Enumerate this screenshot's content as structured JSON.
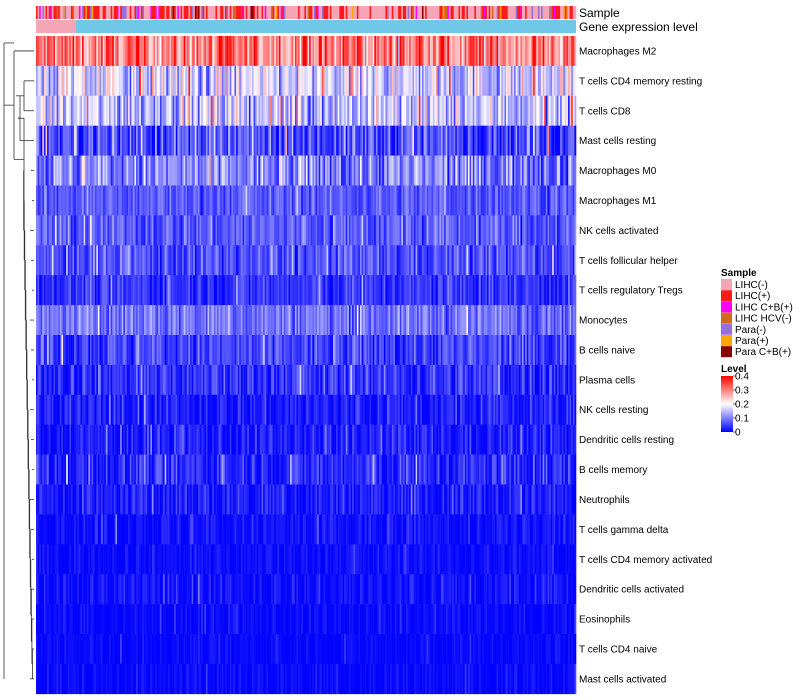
{
  "chart_data": {
    "type": "heatmap",
    "title": "",
    "annotation_tracks": [
      "Sample",
      "Gene expression level"
    ],
    "rows": [
      {
        "label": "Macrophages M2",
        "mean": 0.3,
        "spread": 0.09
      },
      {
        "label": "T cells CD4 memory resting",
        "mean": 0.16,
        "spread": 0.09
      },
      {
        "label": "T cells CD8",
        "mean": 0.15,
        "spread": 0.09
      },
      {
        "label": "Mast cells resting",
        "mean": 0.06,
        "spread": 0.07
      },
      {
        "label": "Macrophages M0",
        "mean": 0.1,
        "spread": 0.08
      },
      {
        "label": "Macrophages M1",
        "mean": 0.07,
        "spread": 0.04
      },
      {
        "label": "NK cells activated",
        "mean": 0.07,
        "spread": 0.05
      },
      {
        "label": "T cells follicular helper",
        "mean": 0.06,
        "spread": 0.05
      },
      {
        "label": "T cells regulatory  Tregs",
        "mean": 0.04,
        "spread": 0.04
      },
      {
        "label": "Monocytes",
        "mean": 0.09,
        "spread": 0.05
      },
      {
        "label": "B cells naive",
        "mean": 0.05,
        "spread": 0.05
      },
      {
        "label": "Plasma cells",
        "mean": 0.04,
        "spread": 0.05
      },
      {
        "label": "NK cells resting",
        "mean": 0.02,
        "spread": 0.04
      },
      {
        "label": "Dendritic cells resting",
        "mean": 0.02,
        "spread": 0.04
      },
      {
        "label": "B cells memory",
        "mean": 0.03,
        "spread": 0.05
      },
      {
        "label": "Neutrophils",
        "mean": 0.02,
        "spread": 0.04
      },
      {
        "label": "T cells gamma delta",
        "mean": 0.01,
        "spread": 0.03
      },
      {
        "label": "T cells CD4 memory activated",
        "mean": 0.01,
        "spread": 0.02
      },
      {
        "label": "Dendritic cells activated",
        "mean": 0.01,
        "spread": 0.03
      },
      {
        "label": "Eosinophils",
        "mean": 0.005,
        "spread": 0.02
      },
      {
        "label": "T cells CD4 naive",
        "mean": 0.005,
        "spread": 0.015
      },
      {
        "label": "Mast cells activated",
        "mean": 0.005,
        "spread": 0.02
      }
    ],
    "n_columns": 340,
    "color_scale": {
      "title": "Level",
      "ticks": [
        "0.4",
        "0.3",
        "0.2",
        "0.1",
        "0"
      ],
      "min": 0,
      "max": 0.4,
      "stops": [
        "#0000ff",
        "#ffffff",
        "#ff0000"
      ]
    },
    "sample_legend": {
      "title": "Sample",
      "items": [
        {
          "label": "LIHC(-)",
          "color": "#f4a6b6"
        },
        {
          "label": "LIHC(+)",
          "color": "#ff1a1a"
        },
        {
          "label": "LIHC C+B(+)",
          "color": "#ff00ff"
        },
        {
          "label": "LIHC HCV(-)",
          "color": "#d2691e"
        },
        {
          "label": "Para(-)",
          "color": "#9370db"
        },
        {
          "label": "Para(+)",
          "color": "#ffa500"
        },
        {
          "label": "Para C+B(+)",
          "color": "#8b0000"
        }
      ]
    },
    "expression_track_color": "#6fc8e8",
    "expression_track_low_color": "#f4a6b6"
  }
}
